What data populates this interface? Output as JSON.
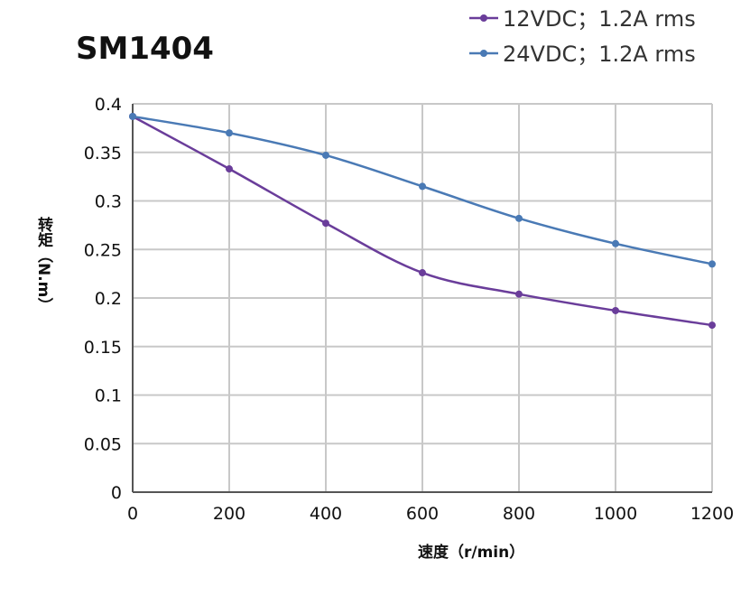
{
  "chart_data": {
    "type": "line",
    "title": "SM1404",
    "xlabel": "速度（r/min）",
    "ylabel": "转矩（N.m）",
    "xlim": [
      0,
      1200
    ],
    "ylim": [
      0,
      0.4
    ],
    "xticks": [
      "0",
      "200",
      "400",
      "600",
      "800",
      "1000",
      "1200"
    ],
    "yticks": [
      "0",
      "0.05",
      "0.1",
      "0.15",
      "0.2",
      "0.25",
      "0.3",
      "0.35",
      "0.4"
    ],
    "grid": true,
    "legend": "top-right",
    "x": [
      0,
      200,
      400,
      600,
      800,
      1000,
      1200
    ],
    "series": [
      {
        "name": "12VDC；1.2A rms",
        "color": "#6a3d9a",
        "values": [
          0.387,
          0.333,
          0.277,
          0.226,
          0.204,
          0.187,
          0.172
        ]
      },
      {
        "name": "24VDC；1.2A rms",
        "color": "#4a7ab5",
        "values": [
          0.387,
          0.37,
          0.347,
          0.315,
          0.282,
          0.256,
          0.235
        ]
      }
    ]
  }
}
